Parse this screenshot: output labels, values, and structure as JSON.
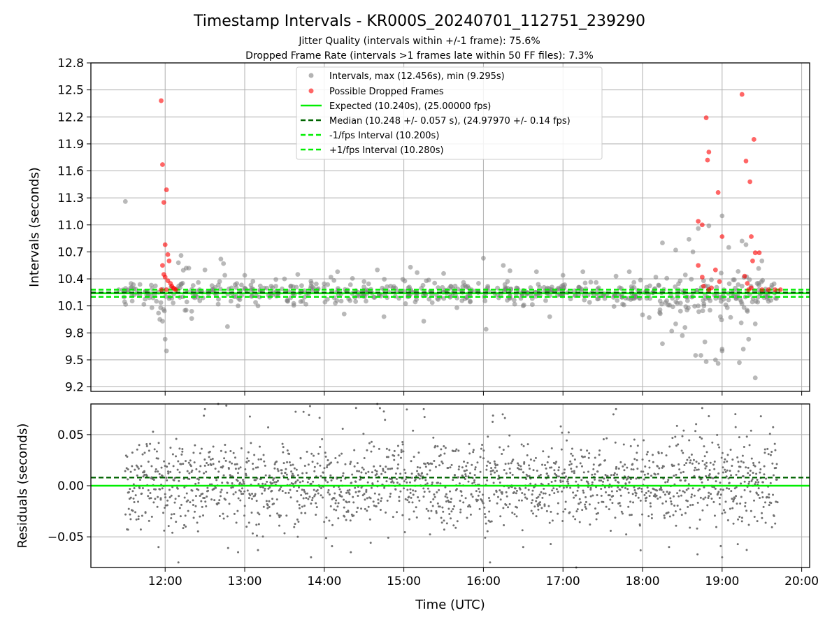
{
  "chart_data": [
    {
      "type": "scatter",
      "title": "Timestamp Intervals - KR000S_20240701_112751_239290",
      "subtitle_lines": [
        "Jitter Quality (intervals within +/-1 frame): 75.6%",
        "Dropped Frame Rate (intervals >1 frames late within 50 FF files): 7.3%"
      ],
      "ylabel": "Intervals (seconds)",
      "xlabel": "",
      "ylim": [
        9.15,
        12.8
      ],
      "xlim": [
        "11:04",
        "20:06"
      ],
      "yticks": [
        "9.2",
        "9.5",
        "9.8",
        "10.1",
        "10.4",
        "10.7",
        "11.0",
        "11.3",
        "11.6",
        "11.9",
        "12.2",
        "12.5",
        "12.8"
      ],
      "grid": true,
      "legend_position": "top-center",
      "legend": [
        "Intervals, max (12.456s), min (9.295s)",
        "Possible Dropped Frames",
        "Expected (10.240s), (25.00000 fps)",
        "Median (10.248 +/- 0.057 s), (24.97970 +/- 0.14 fps)",
        "-1/fps Interval (10.200s)",
        "+1/fps Interval (10.280s)"
      ],
      "reference_lines": {
        "expected": 10.24,
        "median": 10.248,
        "minus_interval": 10.2,
        "plus_interval": 10.28
      },
      "series": [
        {
          "name": "Intervals, max (12.456s), min (9.295s)",
          "color": "#808080",
          "points": [
            [
              "11:30",
              11.26
            ],
            [
              "11:25",
              10.28
            ],
            [
              "11:35",
              10.22
            ],
            [
              "11:45",
              10.26
            ],
            [
              "11:50",
              10.08
            ],
            [
              "11:55",
              10.02
            ],
            [
              "11:58",
              9.93
            ],
            [
              "12:00",
              9.73
            ],
            [
              "12:01",
              9.6
            ],
            [
              "12:03",
              10.18
            ],
            [
              "12:10",
              10.58
            ],
            [
              "12:12",
              10.66
            ],
            [
              "12:15",
              10.05
            ],
            [
              "12:20",
              9.96
            ],
            [
              "12:25",
              10.36
            ],
            [
              "12:30",
              10.5
            ],
            [
              "12:40",
              10.12
            ],
            [
              "12:45",
              10.44
            ],
            [
              "12:50",
              10.3
            ],
            [
              "12:55",
              10.1
            ],
            [
              "12:42",
              10.62
            ],
            [
              "12:44",
              10.57
            ],
            [
              "12:47",
              9.87
            ],
            [
              "13:00",
              10.44
            ],
            [
              "13:10",
              10.1
            ],
            [
              "13:20",
              10.32
            ],
            [
              "13:40",
              10.45
            ],
            [
              "13:55",
              10.28
            ],
            [
              "14:05",
              10.42
            ],
            [
              "14:10",
              10.48
            ],
            [
              "14:15",
              10.01
            ],
            [
              "14:30",
              10.37
            ],
            [
              "14:40",
              10.5
            ],
            [
              "14:45",
              9.98
            ],
            [
              "15:05",
              10.53
            ],
            [
              "15:10",
              10.47
            ],
            [
              "15:15",
              9.93
            ],
            [
              "15:30",
              10.46
            ],
            [
              "15:45",
              10.36
            ],
            [
              "16:00",
              10.63
            ],
            [
              "16:02",
              9.84
            ],
            [
              "16:15",
              10.55
            ],
            [
              "16:20",
              10.49
            ],
            [
              "16:40",
              10.48
            ],
            [
              "16:50",
              9.98
            ],
            [
              "17:00",
              10.44
            ],
            [
              "17:15",
              10.48
            ],
            [
              "17:40",
              10.43
            ],
            [
              "17:50",
              10.48
            ],
            [
              "18:00",
              10.0
            ],
            [
              "18:05",
              9.97
            ],
            [
              "18:15",
              10.8
            ],
            [
              "18:15",
              9.68
            ],
            [
              "18:25",
              10.72
            ],
            [
              "18:30",
              9.77
            ],
            [
              "18:35",
              10.84
            ],
            [
              "18:38",
              10.7
            ],
            [
              "18:42",
              10.96
            ],
            [
              "18:47",
              9.7
            ],
            [
              "18:50",
              10.99
            ],
            [
              "18:55",
              9.5
            ],
            [
              "19:00",
              9.62
            ],
            [
              "19:05",
              10.75
            ],
            [
              "19:00",
              11.1
            ],
            [
              "19:15",
              10.82
            ],
            [
              "19:18",
              10.78
            ],
            [
              "19:20",
              9.73
            ],
            [
              "19:25",
              9.9
            ],
            [
              "19:30",
              10.6
            ],
            [
              "19:35",
              10.15
            ],
            [
              "19:40",
              10.25
            ],
            [
              "18:25",
              9.9
            ],
            [
              "18:22",
              9.82
            ],
            [
              "18:32",
              9.86
            ],
            [
              "18:40",
              9.55
            ],
            [
              "18:44",
              9.55
            ],
            [
              "18:48",
              9.48
            ],
            [
              "18:57",
              9.46
            ],
            [
              "19:00",
              9.6
            ],
            [
              "19:13",
              9.47
            ],
            [
              "19:16",
              9.62
            ],
            [
              "19:25",
              9.3
            ],
            [
              "18:10",
              10.42
            ],
            [
              "17:45",
              10.12
            ],
            [
              "13:30",
              10.4
            ],
            [
              "12:20",
              10.04
            ],
            [
              "15:40",
              10.08
            ],
            [
              "16:30",
              10.1
            ],
            [
              "17:25",
              10.36
            ],
            [
              "14:50",
              10.32
            ]
          ]
        },
        {
          "name": "Possible Dropped Frames",
          "color": "#ff0000",
          "points": [
            [
              "11:57",
              12.38
            ],
            [
              "11:58",
              11.67
            ],
            [
              "11:59",
              11.25
            ],
            [
              "12:01",
              11.39
            ],
            [
              "12:00",
              10.78
            ],
            [
              "12:02",
              10.67
            ],
            [
              "12:03",
              10.6
            ],
            [
              "11:58",
              10.55
            ],
            [
              "11:59",
              10.45
            ],
            [
              "12:00",
              10.42
            ],
            [
              "12:02",
              10.38
            ],
            [
              "12:04",
              10.35
            ],
            [
              "12:05",
              10.32
            ],
            [
              "12:06",
              10.3
            ],
            [
              "12:07",
              10.29
            ],
            [
              "11:57",
              10.28
            ],
            [
              "12:01",
              10.28
            ],
            [
              "12:08",
              10.28
            ],
            [
              "18:42",
              11.04
            ],
            [
              "18:45",
              11.0
            ],
            [
              "18:48",
              12.19
            ],
            [
              "18:50",
              11.81
            ],
            [
              "18:49",
              11.72
            ],
            [
              "18:57",
              11.36
            ],
            [
              "19:15",
              12.45
            ],
            [
              "19:18",
              11.71
            ],
            [
              "19:21",
              11.48
            ],
            [
              "19:24",
              11.95
            ],
            [
              "19:00",
              10.87
            ],
            [
              "19:22",
              10.87
            ],
            [
              "19:25",
              10.69
            ],
            [
              "19:28",
              10.69
            ],
            [
              "19:23",
              10.6
            ],
            [
              "18:42",
              10.55
            ],
            [
              "18:45",
              10.42
            ],
            [
              "18:55",
              10.5
            ],
            [
              "18:58",
              10.37
            ],
            [
              "18:46",
              10.32
            ],
            [
              "18:52",
              10.3
            ],
            [
              "19:17",
              10.43
            ],
            [
              "19:19",
              10.35
            ],
            [
              "19:22",
              10.3
            ],
            [
              "19:30",
              10.28
            ],
            [
              "19:35",
              10.28
            ],
            [
              "19:40",
              10.28
            ],
            [
              "19:44",
              10.28
            ],
            [
              "19:20",
              10.28
            ],
            [
              "18:50",
              10.28
            ]
          ]
        }
      ]
    },
    {
      "type": "scatter",
      "title": "",
      "xlabel": "Time (UTC)",
      "ylabel": "Residuals (seconds)",
      "ylim": [
        -0.08,
        0.08
      ],
      "yticks": [
        "−0.05",
        "0.00",
        "0.05"
      ],
      "xticks": [
        "12:00",
        "13:00",
        "14:00",
        "15:00",
        "16:00",
        "17:00",
        "18:00",
        "19:00",
        "20:00"
      ],
      "grid": true,
      "reference_lines": {
        "zero": 0.0,
        "median_offset": 0.008
      },
      "series": [
        {
          "name": "Residuals",
          "color": "#707070",
          "x_start": "11:30",
          "x_end": "19:42",
          "count": 1800,
          "typical_range": [
            -0.04,
            0.045
          ],
          "outliers": [
            [
              "11:32",
              -0.043
            ],
            [
              "11:40",
              -0.03
            ],
            [
              "11:55",
              -0.06
            ],
            [
              "12:10",
              -0.075
            ],
            [
              "12:30",
              0.075
            ],
            [
              "12:40",
              0.08
            ],
            [
              "12:55",
              -0.065
            ],
            [
              "13:10",
              -0.063
            ],
            [
              "13:40",
              -0.05
            ],
            [
              "13:50",
              -0.07
            ],
            [
              "14:20",
              -0.065
            ],
            [
              "14:40",
              0.08
            ],
            [
              "15:15",
              0.075
            ],
            [
              "16:05",
              -0.075
            ],
            [
              "16:30",
              -0.06
            ],
            [
              "17:10",
              -0.08
            ],
            [
              "17:40",
              0.075
            ],
            [
              "18:20",
              -0.06
            ],
            [
              "18:45",
              0.076
            ],
            [
              "18:50",
              0.068
            ],
            [
              "19:00",
              -0.07
            ],
            [
              "19:10",
              0.07
            ],
            [
              "19:12",
              -0.033
            ],
            [
              "19:40",
              -0.037
            ]
          ]
        }
      ]
    }
  ]
}
